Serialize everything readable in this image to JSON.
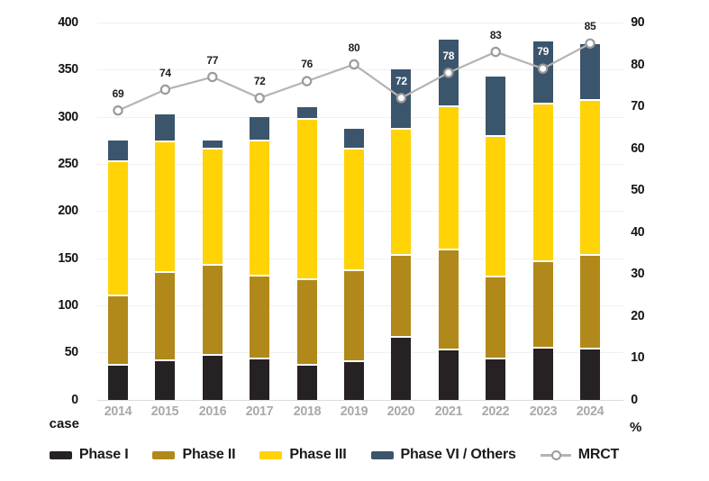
{
  "chart_data": {
    "type": "bar",
    "subtype": "stacked-column-with-line",
    "title": "",
    "categories": [
      "2014",
      "2015",
      "2016",
      "2017",
      "2018",
      "2019",
      "2020",
      "2021",
      "2022",
      "2023",
      "2024"
    ],
    "series": [
      {
        "name": "Phase I",
        "color": "#262122",
        "values": [
          36,
          41,
          47,
          43,
          36,
          40,
          66,
          52,
          43,
          54,
          53
        ]
      },
      {
        "name": "Phase II",
        "color": "#B1891A",
        "values": [
          74,
          94,
          95,
          88,
          91,
          96,
          87,
          106,
          87,
          92,
          100
        ]
      },
      {
        "name": "Phase III",
        "color": "#FFD306",
        "values": [
          142,
          138,
          123,
          143,
          170,
          129,
          133,
          152,
          149,
          167,
          164
        ]
      },
      {
        "name": "Phase VI / Others",
        "color": "#3B556C",
        "values": [
          23,
          30,
          10,
          26,
          13,
          22,
          64,
          72,
          64,
          67,
          60
        ]
      }
    ],
    "stack_totals": [
      275,
      303,
      275,
      300,
      310,
      287,
      350,
      382,
      343,
      380,
      377
    ],
    "line_series": {
      "name": "MRCT",
      "axis": "right",
      "color": "#B5B3B3",
      "marker": "open-circle",
      "values": [
        69,
        74,
        77,
        72,
        76,
        80,
        72,
        78,
        83,
        79,
        85
      ]
    },
    "left_axis": {
      "unit_label": "case",
      "min": 0,
      "max": 400,
      "tick_step": 50,
      "ticks": [
        "400",
        "350",
        "300",
        "250",
        "200",
        "150",
        "100",
        "50",
        "0"
      ]
    },
    "right_axis": {
      "unit_label": "%",
      "min": 0,
      "max": 90,
      "tick_step": 10,
      "ticks": [
        "90",
        "80",
        "70",
        "60",
        "50",
        "40",
        "30",
        "20",
        "10",
        "0"
      ]
    },
    "legend": [
      "Phase I",
      "Phase II",
      "Phase III",
      "Phase VI / Others",
      "MRCT"
    ],
    "legend_position": "bottom",
    "grid": "horizontal-only"
  },
  "colors": {
    "background": "#FFFFFF",
    "gridline": "#F1F1F1",
    "baseline": "#DDDDDD",
    "axis_text": "#141414",
    "year_text": "#A9A9A9",
    "line": "#B5B3B3",
    "marker_stroke": "#9C9A9A",
    "marker_fill": "#FFFFFF",
    "point_label_dark": "#1F1F1F",
    "point_label_light": "#FFFFFF"
  }
}
